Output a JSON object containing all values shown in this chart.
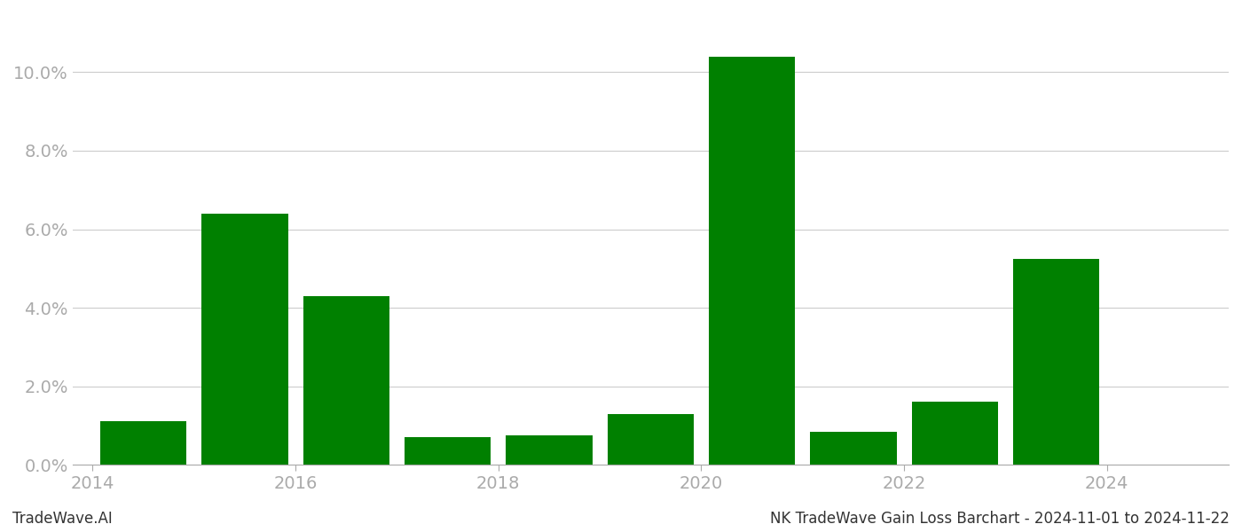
{
  "years": [
    2014,
    2015,
    2016,
    2017,
    2018,
    2019,
    2020,
    2021,
    2022,
    2023,
    2024
  ],
  "values": [
    0.011,
    0.064,
    0.043,
    0.007,
    0.0075,
    0.013,
    0.104,
    0.0085,
    0.016,
    0.0525,
    0.0
  ],
  "bar_color": "#008000",
  "background_color": "#ffffff",
  "grid_color": "#cccccc",
  "axis_color": "#aaaaaa",
  "tick_label_color": "#aaaaaa",
  "footer_left": "TradeWave.AI",
  "footer_right": "NK TradeWave Gain Loss Barchart - 2024-11-01 to 2024-11-22",
  "ylim": [
    0,
    0.115
  ],
  "ytick_positions": [
    0.0,
    0.02,
    0.04,
    0.06,
    0.08,
    0.1
  ],
  "xtick_positions": [
    2013.5,
    2015.5,
    2017.5,
    2019.5,
    2021.5,
    2023.5
  ],
  "xtick_labels": [
    "2014",
    "2016",
    "2018",
    "2020",
    "2022",
    "2024"
  ],
  "bar_width": 0.85,
  "font_family": "DejaVu Sans",
  "font_size_ticks": 14,
  "font_size_footer": 12
}
